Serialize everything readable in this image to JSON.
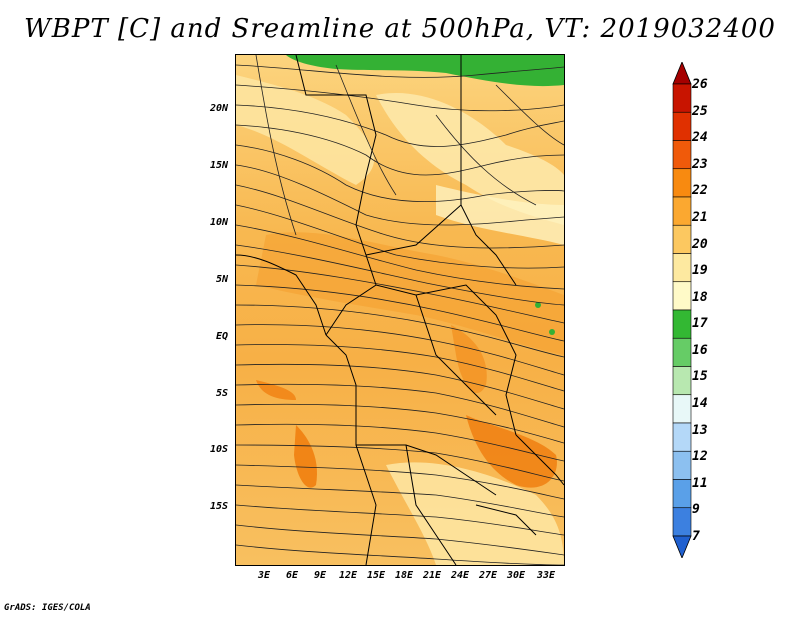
{
  "title": "WBPT [C] and Sreamline at 500hPa, VT: 2019032400",
  "lat_ticks": [
    "20N",
    "15N",
    "10N",
    "5N",
    "EQ",
    "5S",
    "10S",
    "15S"
  ],
  "lon_ticks": [
    "3E",
    "6E",
    "9E",
    "12E",
    "15E",
    "18E",
    "21E",
    "24E",
    "27E",
    "30E",
    "33E"
  ],
  "colorbar": {
    "labels": [
      "26",
      "25",
      "24",
      "23",
      "22",
      "21",
      "20",
      "19",
      "18",
      "17",
      "16",
      "15",
      "14",
      "13",
      "12",
      "11",
      "9",
      "7"
    ],
    "colors": [
      "#a50000",
      "#c81400",
      "#e03000",
      "#f05a0a",
      "#f88a10",
      "#fba830",
      "#fcc860",
      "#fde9a0",
      "#fffac8",
      "#33b833",
      "#66cc66",
      "#b8e8b0",
      "#e8f8f8",
      "#b4d8f8",
      "#8cc0f0",
      "#5aa0e8",
      "#3c80e0",
      "#2060d0"
    ]
  },
  "credit": "GrADS: IGES/COLA"
}
